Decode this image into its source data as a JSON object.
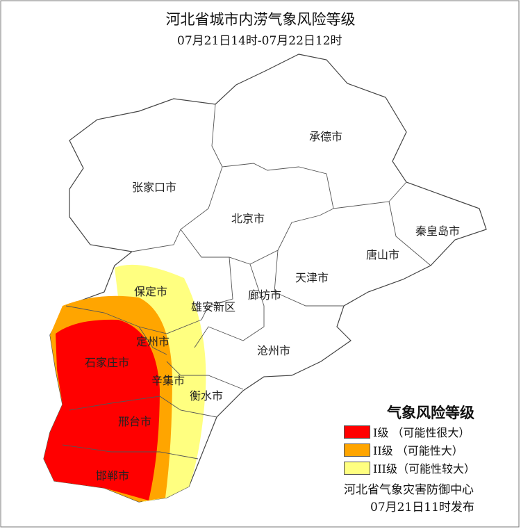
{
  "title": "河北省城市内涝气象风险等级",
  "subtitle": "07月21日14时-07月22日12时",
  "colors": {
    "level1": "#ff0000",
    "level2": "#ffa500",
    "level3": "#ffff80",
    "border": "#555555"
  },
  "cities": [
    "承德市",
    "张家口市",
    "北京市",
    "秦皇岛市",
    "唐山市",
    "天津市",
    "保定市",
    "雄安新区",
    "廊坊市",
    "定州市",
    "石家庄市",
    "辛集市",
    "衡水市",
    "沧州市",
    "邢台市",
    "邯郸市"
  ],
  "legend": {
    "title": "气象风险等级",
    "items": [
      {
        "label": "I级 （可能性很大）",
        "color": "#ff0000"
      },
      {
        "label": "II级 （可能性大）",
        "color": "#ffa500"
      },
      {
        "label": "III级（可能性较大）",
        "color": "#ffff80"
      }
    ],
    "issuer": "河北省气象灾害防御中心",
    "issued": "07月21日11时发布"
  }
}
